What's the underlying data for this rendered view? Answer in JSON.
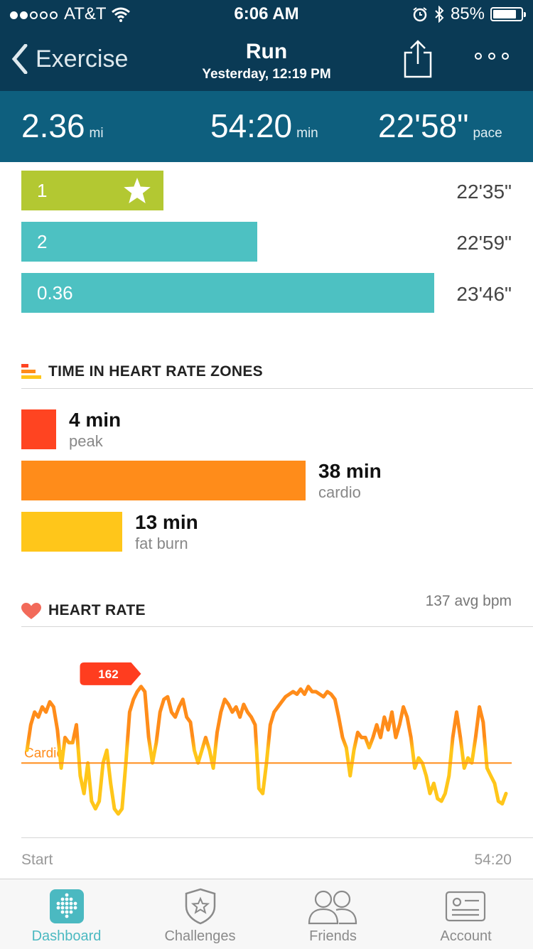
{
  "status_bar": {
    "carrier": "AT&T",
    "time": "6:06 AM",
    "battery": "85%",
    "battery_level": 0.85
  },
  "header": {
    "back_label": "Exercise",
    "title": "Run",
    "subtitle": "Yesterday, 12:19 PM"
  },
  "summary": {
    "distance": "2.36",
    "distance_unit": "mi",
    "duration": "54:20",
    "duration_unit": "min",
    "pace": "22'58\"",
    "pace_unit": "pace"
  },
  "splits": [
    {
      "label": "1",
      "time": "22'35\"",
      "color": "#b3c832",
      "best": true
    },
    {
      "label": "2",
      "time": "22'59\"",
      "color": "#4dc1c2",
      "best": false
    },
    {
      "label": "0.36",
      "time": "23'46\"",
      "color": "#4dc1c2",
      "best": false
    }
  ],
  "zones_section": {
    "title": "TIME IN HEART RATE ZONES"
  },
  "zones": [
    {
      "value": "4 min",
      "label": "peak",
      "minutes": 4,
      "color": "#ff4421"
    },
    {
      "value": "38 min",
      "label": "cardio",
      "minutes": 38,
      "color": "#ff8c1a"
    },
    {
      "value": "13 min",
      "label": "fat burn",
      "minutes": 13,
      "color": "#ffc61a"
    }
  ],
  "heart_rate": {
    "title": "HEART RATE",
    "avg": "137 avg bpm",
    "peak_label": "162",
    "zone_line_label": "Cardio",
    "x_start": "Start",
    "x_end": "54:20"
  },
  "chart_data": {
    "type": "line",
    "x_start": "Start",
    "x_end": "54:20",
    "threshold": {
      "label": "Cardio",
      "value": 130
    },
    "peak": 162,
    "ylim": [
      110,
      170
    ],
    "series": [
      {
        "values": [
          135,
          145,
          150,
          148,
          152,
          150,
          154,
          152,
          143,
          128,
          140,
          138,
          138,
          145,
          125,
          118,
          130,
          115,
          112,
          115,
          130,
          135,
          122,
          112,
          110,
          112,
          130,
          150,
          155,
          158,
          160,
          158,
          140,
          130,
          138,
          150,
          155,
          156,
          150,
          148,
          152,
          155,
          148,
          146,
          135,
          130,
          135,
          140,
          135,
          128,
          142,
          150,
          155,
          153,
          150,
          152,
          148,
          153,
          150,
          148,
          145,
          120,
          118,
          130,
          145,
          150,
          152,
          154,
          156,
          157,
          158,
          157,
          159,
          157,
          160,
          158,
          158,
          157,
          156,
          158,
          157,
          155,
          148,
          140,
          136,
          125,
          135,
          142,
          140,
          140,
          136,
          140,
          145,
          140,
          148,
          143,
          150,
          140,
          145,
          152,
          148,
          140,
          128,
          132,
          130,
          125,
          118,
          122,
          116,
          115,
          118,
          125,
          140,
          150,
          140,
          128,
          132,
          130,
          140,
          152,
          146,
          128,
          125,
          122,
          115,
          114,
          118
        ]
      }
    ]
  },
  "tabs": [
    {
      "label": "Dashboard",
      "active": true
    },
    {
      "label": "Challenges",
      "active": false
    },
    {
      "label": "Friends",
      "active": false
    },
    {
      "label": "Account",
      "active": false
    }
  ]
}
